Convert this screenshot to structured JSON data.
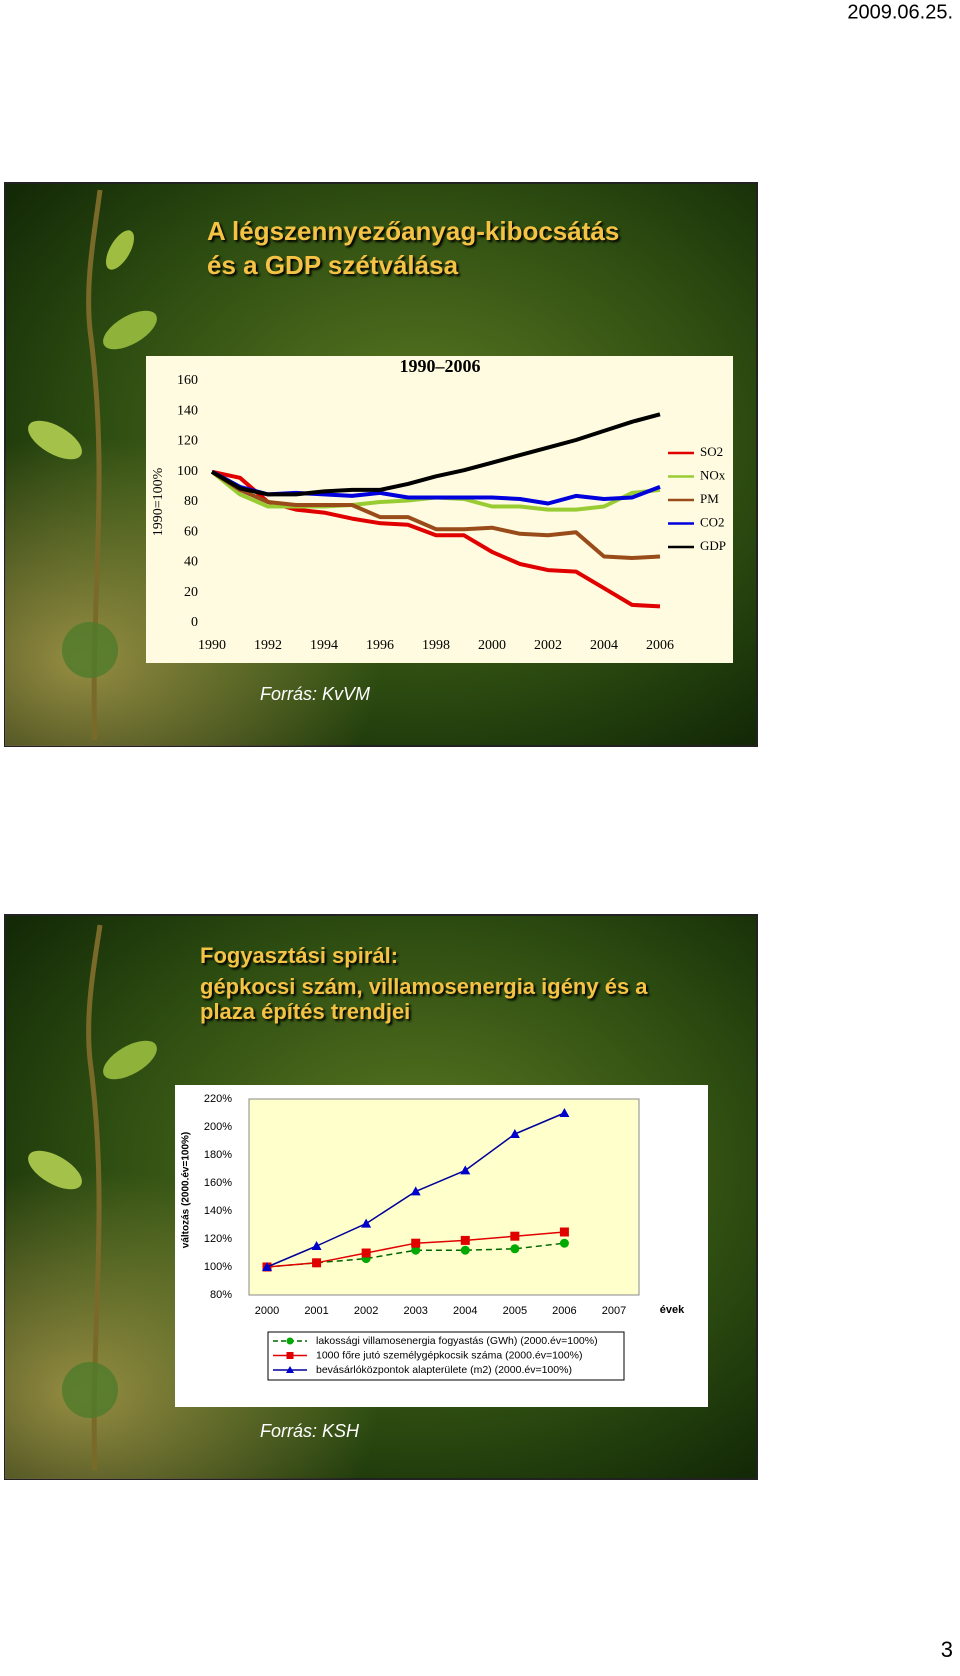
{
  "header": {
    "date": "2009.06.25."
  },
  "slides": [
    {
      "title": [
        "A légszennyezőanyag-kibocsátás",
        "és a GDP szétválása"
      ],
      "source": "Forrás: KvVM"
    },
    {
      "title": [
        "Fogyasztási spirál:",
        "gépkocsi szám, villamosenergia igény és a",
        "plaza építés trendjei"
      ],
      "source": "Forrás: KSH"
    }
  ],
  "chart_data": [
    {
      "type": "line",
      "title": "1990–2006",
      "y_label": "1990=100%",
      "x": [
        1990,
        1991,
        1992,
        1993,
        1994,
        1995,
        1996,
        1997,
        1998,
        1999,
        2000,
        2001,
        2002,
        2003,
        2004,
        2005,
        2006
      ],
      "xlim": [
        1990,
        2006
      ],
      "xticks": [
        1990,
        1992,
        1994,
        1996,
        1998,
        2000,
        2002,
        2004,
        2006
      ],
      "ylim": [
        0,
        160
      ],
      "yticks": [
        0,
        20,
        40,
        60,
        80,
        100,
        120,
        140,
        160
      ],
      "grid": false,
      "legend": "right",
      "series": [
        {
          "name": "SO2",
          "color": "#e00000",
          "values": [
            100,
            96,
            80,
            75,
            73,
            69,
            66,
            65,
            58,
            58,
            47,
            39,
            35,
            34,
            23,
            12,
            11
          ]
        },
        {
          "name": "NOx",
          "color": "#99cc33",
          "values": [
            100,
            85,
            77,
            77,
            77,
            78,
            80,
            81,
            83,
            82,
            77,
            77,
            75,
            75,
            77,
            86,
            88
          ]
        },
        {
          "name": "PM",
          "color": "#994c1a",
          "values": [
            100,
            88,
            80,
            78,
            78,
            78,
            70,
            70,
            62,
            62,
            63,
            59,
            58,
            60,
            44,
            43,
            44
          ]
        },
        {
          "name": "CO2",
          "color": "#0000dd",
          "values": [
            100,
            90,
            85,
            86,
            85,
            84,
            86,
            83,
            83,
            83,
            83,
            82,
            79,
            84,
            82,
            83,
            90
          ]
        },
        {
          "name": "GDP",
          "color": "#000000",
          "values": [
            100,
            89,
            85,
            85,
            87,
            88,
            88,
            92,
            97,
            101,
            106,
            111,
            116,
            121,
            127,
            133,
            138
          ]
        }
      ]
    },
    {
      "type": "line",
      "x_label": "évek",
      "y_label": "változás (2000.év=100%)",
      "categories": [
        "2000",
        "2001",
        "2002",
        "2003",
        "2004",
        "2005",
        "2006",
        "2007"
      ],
      "ylim": [
        80,
        220
      ],
      "yticks": [
        {
          "value": 80,
          "label": "80%"
        },
        {
          "value": 100,
          "label": "100%"
        },
        {
          "value": 120,
          "label": "120%"
        },
        {
          "value": 140,
          "label": "140%"
        },
        {
          "value": 160,
          "label": "160%"
        },
        {
          "value": 180,
          "label": "180%"
        },
        {
          "value": 200,
          "label": "200%"
        },
        {
          "value": 220,
          "label": "220%"
        }
      ],
      "grid": false,
      "legend": "bottom",
      "series": [
        {
          "name": "lakossági villamosenergia fogyastás (GWh) (2000.év=100%)",
          "color": "#006600",
          "marker_color": "#00aa00",
          "marker": "circle",
          "line_style": "dashed",
          "values": [
            100,
            103,
            106,
            112,
            112,
            113,
            117,
            null
          ]
        },
        {
          "name": "1000 főre jutó személygépkocsik száma (2000.év=100%)",
          "color": "#e00000",
          "marker_color": "#e00000",
          "marker": "square",
          "line_style": "solid",
          "values": [
            100,
            103,
            110,
            117,
            119,
            122,
            125,
            null
          ]
        },
        {
          "name": "bevásárlóközpontok alapterülete (m2) (2000.év=100%)",
          "color": "#000099",
          "marker_color": "#0000cc",
          "marker": "triangle",
          "line_style": "solid",
          "values": [
            100,
            115,
            131,
            154,
            169,
            195,
            210,
            null
          ]
        }
      ]
    }
  ],
  "page_number": "3"
}
